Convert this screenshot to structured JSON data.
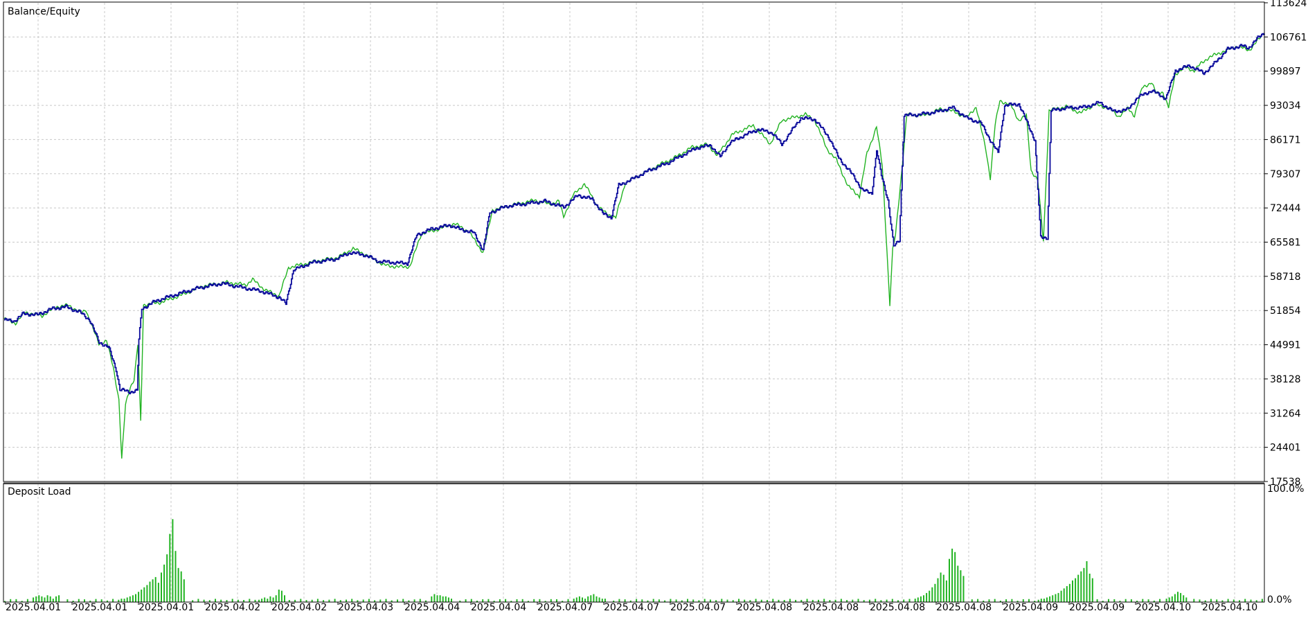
{
  "chart_data": {
    "type": "line",
    "series": [
      {
        "name": "Balance",
        "color": "#0b0b9c"
      },
      {
        "name": "Equity",
        "color": "#21b321"
      }
    ],
    "legend_separator": " / ",
    "ylim": [
      17538,
      113624
    ],
    "yticks": [
      113624,
      106761,
      99897,
      93034,
      86171,
      79307,
      72444,
      65581,
      58718,
      51854,
      44991,
      38128,
      31264,
      24401,
      17538
    ],
    "x_tick_labels": [
      "2025.04.01",
      "2025.04.01",
      "2025.04.01",
      "2025.04.02",
      "2025.04.02",
      "2025.04.03",
      "2025.04.04",
      "2025.04.04",
      "2025.04.07",
      "2025.04.07",
      "2025.04.07",
      "2025.04.08",
      "2025.04.08",
      "2025.04.08",
      "2025.04.08",
      "2025.04.09",
      "2025.04.09",
      "2025.04.10",
      "2025.04.10"
    ],
    "grid": true,
    "legend_position": "top-left",
    "balance_keypoints": [
      [
        0,
        50000
      ],
      [
        10,
        49700
      ],
      [
        20,
        51200
      ],
      [
        35,
        51000
      ],
      [
        50,
        52200
      ],
      [
        65,
        52600
      ],
      [
        80,
        51500
      ],
      [
        90,
        50000
      ],
      [
        100,
        45500
      ],
      [
        110,
        44500
      ],
      [
        118,
        40000
      ],
      [
        122,
        36000
      ],
      [
        132,
        35500
      ],
      [
        140,
        35800
      ],
      [
        142,
        46000
      ],
      [
        145,
        52200
      ],
      [
        160,
        53800
      ],
      [
        180,
        55000
      ],
      [
        205,
        56400
      ],
      [
        230,
        57300
      ],
      [
        250,
        56500
      ],
      [
        270,
        55800
      ],
      [
        290,
        54500
      ],
      [
        297,
        53200
      ],
      [
        305,
        60000
      ],
      [
        325,
        61500
      ],
      [
        350,
        62200
      ],
      [
        365,
        63500
      ],
      [
        380,
        63000
      ],
      [
        395,
        61700
      ],
      [
        410,
        61500
      ],
      [
        425,
        61300
      ],
      [
        435,
        67000
      ],
      [
        450,
        68200
      ],
      [
        470,
        69000
      ],
      [
        480,
        68200
      ],
      [
        495,
        67500
      ],
      [
        505,
        64000
      ],
      [
        512,
        71500
      ],
      [
        530,
        72800
      ],
      [
        550,
        73300
      ],
      [
        570,
        73800
      ],
      [
        590,
        72600
      ],
      [
        605,
        75000
      ],
      [
        620,
        74200
      ],
      [
        632,
        71200
      ],
      [
        640,
        70500
      ],
      [
        648,
        77000
      ],
      [
        660,
        78000
      ],
      [
        680,
        80000
      ],
      [
        700,
        81500
      ],
      [
        715,
        83000
      ],
      [
        730,
        84500
      ],
      [
        745,
        85000
      ],
      [
        755,
        82700
      ],
      [
        765,
        85500
      ],
      [
        780,
        87000
      ],
      [
        795,
        88200
      ],
      [
        810,
        87500
      ],
      [
        820,
        85200
      ],
      [
        840,
        90500
      ],
      [
        855,
        90200
      ],
      [
        870,
        86500
      ],
      [
        880,
        82500
      ],
      [
        895,
        79000
      ],
      [
        905,
        76000
      ],
      [
        915,
        75400
      ],
      [
        920,
        84000
      ],
      [
        925,
        79000
      ],
      [
        932,
        74000
      ],
      [
        938,
        64700
      ],
      [
        944,
        66000
      ],
      [
        949,
        91000
      ],
      [
        965,
        91200
      ],
      [
        985,
        91800
      ],
      [
        1000,
        92600
      ],
      [
        1015,
        90500
      ],
      [
        1030,
        89500
      ],
      [
        1040,
        86000
      ],
      [
        1048,
        83500
      ],
      [
        1055,
        93000
      ],
      [
        1070,
        93300
      ],
      [
        1080,
        89000
      ],
      [
        1087,
        86000
      ],
      [
        1093,
        66500
      ],
      [
        1100,
        66500
      ],
      [
        1104,
        92000
      ],
      [
        1120,
        92500
      ],
      [
        1140,
        92700
      ],
      [
        1155,
        93600
      ],
      [
        1170,
        91800
      ],
      [
        1185,
        92200
      ],
      [
        1195,
        94600
      ],
      [
        1210,
        96000
      ],
      [
        1225,
        94400
      ],
      [
        1235,
        100000
      ],
      [
        1250,
        101000
      ],
      [
        1265,
        99500
      ],
      [
        1275,
        101200
      ],
      [
        1290,
        104300
      ],
      [
        1305,
        105000
      ],
      [
        1312,
        104500
      ],
      [
        1320,
        106200
      ],
      [
        1330,
        107800
      ]
    ],
    "equity_keypoints": [
      [
        0,
        50200
      ],
      [
        12,
        49300
      ],
      [
        22,
        51500
      ],
      [
        40,
        50800
      ],
      [
        55,
        52600
      ],
      [
        68,
        52900
      ],
      [
        82,
        51300
      ],
      [
        86,
        52100
      ],
      [
        92,
        49000
      ],
      [
        100,
        45200
      ],
      [
        108,
        45800
      ],
      [
        115,
        40500
      ],
      [
        121,
        34000
      ],
      [
        124,
        22000
      ],
      [
        128,
        33000
      ],
      [
        133,
        36500
      ],
      [
        137,
        38000
      ],
      [
        141,
        45000
      ],
      [
        144,
        29500
      ],
      [
        147,
        53000
      ],
      [
        165,
        53500
      ],
      [
        185,
        54800
      ],
      [
        210,
        56800
      ],
      [
        235,
        57500
      ],
      [
        255,
        57000
      ],
      [
        262,
        58100
      ],
      [
        275,
        56000
      ],
      [
        290,
        54800
      ],
      [
        300,
        60500
      ],
      [
        330,
        61800
      ],
      [
        352,
        62500
      ],
      [
        368,
        64300
      ],
      [
        385,
        62700
      ],
      [
        400,
        61000
      ],
      [
        415,
        60600
      ],
      [
        428,
        60700
      ],
      [
        440,
        67300
      ],
      [
        455,
        68000
      ],
      [
        475,
        69300
      ],
      [
        490,
        67700
      ],
      [
        505,
        63500
      ],
      [
        515,
        72000
      ],
      [
        535,
        73000
      ],
      [
        560,
        74000
      ],
      [
        575,
        73200
      ],
      [
        585,
        73800
      ],
      [
        590,
        70700
      ],
      [
        600,
        75000
      ],
      [
        612,
        77300
      ],
      [
        625,
        73000
      ],
      [
        635,
        71300
      ],
      [
        645,
        70500
      ],
      [
        655,
        77500
      ],
      [
        670,
        79000
      ],
      [
        690,
        81000
      ],
      [
        710,
        82800
      ],
      [
        725,
        84600
      ],
      [
        742,
        85200
      ],
      [
        752,
        83000
      ],
      [
        768,
        87200
      ],
      [
        790,
        89000
      ],
      [
        808,
        85300
      ],
      [
        820,
        90000
      ],
      [
        845,
        91200
      ],
      [
        855,
        90000
      ],
      [
        868,
        84200
      ],
      [
        878,
        82000
      ],
      [
        890,
        76800
      ],
      [
        902,
        74800
      ],
      [
        910,
        83500
      ],
      [
        915,
        86000
      ],
      [
        920,
        88800
      ],
      [
        926,
        81000
      ],
      [
        931,
        63800
      ],
      [
        934,
        53000
      ],
      [
        937,
        64000
      ],
      [
        940,
        67000
      ],
      [
        947,
        80700
      ],
      [
        952,
        91200
      ],
      [
        970,
        91000
      ],
      [
        988,
        92300
      ],
      [
        1000,
        91900
      ],
      [
        1015,
        90600
      ],
      [
        1025,
        92700
      ],
      [
        1035,
        84500
      ],
      [
        1040,
        78400
      ],
      [
        1045,
        89000
      ],
      [
        1050,
        94000
      ],
      [
        1062,
        93000
      ],
      [
        1070,
        90000
      ],
      [
        1078,
        91000
      ],
      [
        1083,
        80000
      ],
      [
        1090,
        78000
      ],
      [
        1096,
        65800
      ],
      [
        1102,
        92000
      ],
      [
        1120,
        92800
      ],
      [
        1135,
        91500
      ],
      [
        1150,
        93200
      ],
      [
        1165,
        92500
      ],
      [
        1175,
        90800
      ],
      [
        1185,
        92400
      ],
      [
        1192,
        91000
      ],
      [
        1200,
        96500
      ],
      [
        1210,
        97700
      ],
      [
        1215,
        95400
      ],
      [
        1222,
        95700
      ],
      [
        1228,
        92600
      ],
      [
        1235,
        99300
      ],
      [
        1245,
        100700
      ],
      [
        1255,
        100000
      ],
      [
        1262,
        101400
      ],
      [
        1270,
        102600
      ],
      [
        1285,
        103800
      ],
      [
        1300,
        104900
      ],
      [
        1313,
        104100
      ],
      [
        1325,
        106700
      ],
      [
        1330,
        108200
      ]
    ]
  },
  "panels": {
    "deposit_load": {
      "label": "Deposit Load",
      "axis_labels": [
        "100.0%",
        "0.0%"
      ],
      "color": "#21b321",
      "spike_groups": [
        {
          "start": 120,
          "count": 24,
          "levels": [
            2,
            3,
            3,
            4,
            5,
            6,
            7,
            9,
            11,
            13,
            15,
            18,
            20,
            22,
            17,
            26,
            33,
            42,
            60,
            73,
            45,
            30,
            27,
            20
          ]
        },
        {
          "start": 960,
          "count": 18,
          "levels": [
            3,
            4,
            5,
            6,
            8,
            10,
            13,
            16,
            21,
            26,
            24,
            19,
            38,
            47,
            44,
            32,
            28,
            23
          ]
        },
        {
          "start": 1090,
          "count": 20,
          "levels": [
            2,
            3,
            3,
            4,
            5,
            6,
            7,
            8,
            10,
            12,
            14,
            16,
            19,
            21,
            24,
            27,
            30,
            36,
            25,
            21
          ]
        },
        {
          "start": 268,
          "count": 10,
          "levels": [
            2,
            3,
            4,
            3,
            5,
            4,
            6,
            11,
            10,
            6
          ]
        },
        {
          "start": 450,
          "count": 8,
          "levels": [
            5,
            7,
            6,
            6,
            5,
            5,
            4,
            3
          ]
        },
        {
          "start": 1225,
          "count": 8,
          "levels": [
            3,
            4,
            5,
            7,
            9,
            8,
            6,
            4
          ]
        },
        {
          "start": 30,
          "count": 10,
          "levels": [
            4,
            5,
            6,
            5,
            4,
            6,
            5,
            3,
            5,
            6
          ]
        },
        {
          "start": 600,
          "count": 12,
          "levels": [
            3,
            4,
            5,
            4,
            3,
            5,
            6,
            7,
            5,
            4,
            3,
            3
          ]
        }
      ]
    }
  }
}
